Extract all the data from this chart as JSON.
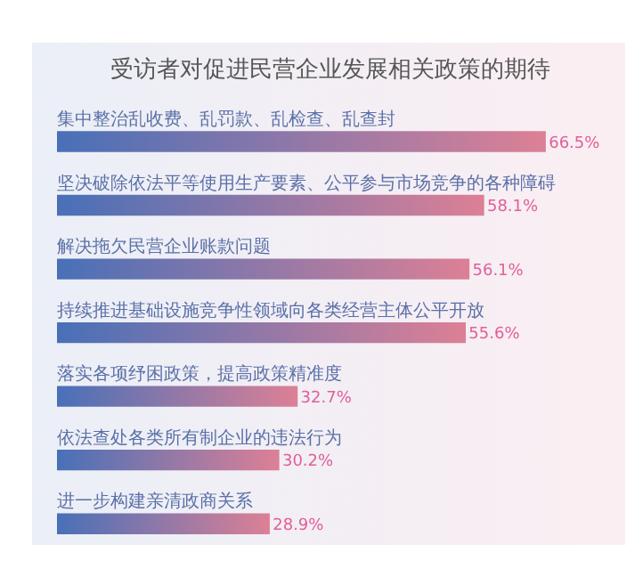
{
  "chart_data": {
    "type": "bar",
    "orientation": "horizontal",
    "title": "受访者对促进民营企业发展相关政策的期待",
    "categories": [
      "集中整治乱收费、乱罚款、乱检查、乱查封",
      "坚决破除依法平等使用生产要素、公平参与市场竞争的各种障碍",
      "解决拖欠民营企业账款问题",
      "持续推进基础设施竞争性领域向各类经营主体公平开放",
      "落实各项纾困政策，提高政策精准度",
      "依法查处各类所有制企业的违法行为",
      "进一步构建亲清政商关系"
    ],
    "values": [
      66.5,
      58.1,
      56.1,
      55.6,
      32.7,
      30.2,
      28.9
    ],
    "value_labels": [
      "66.5%",
      "58.1%",
      "56.1%",
      "55.6%",
      "32.7%",
      "30.2%",
      "28.9%"
    ],
    "color": "#dc8096"
  }
}
